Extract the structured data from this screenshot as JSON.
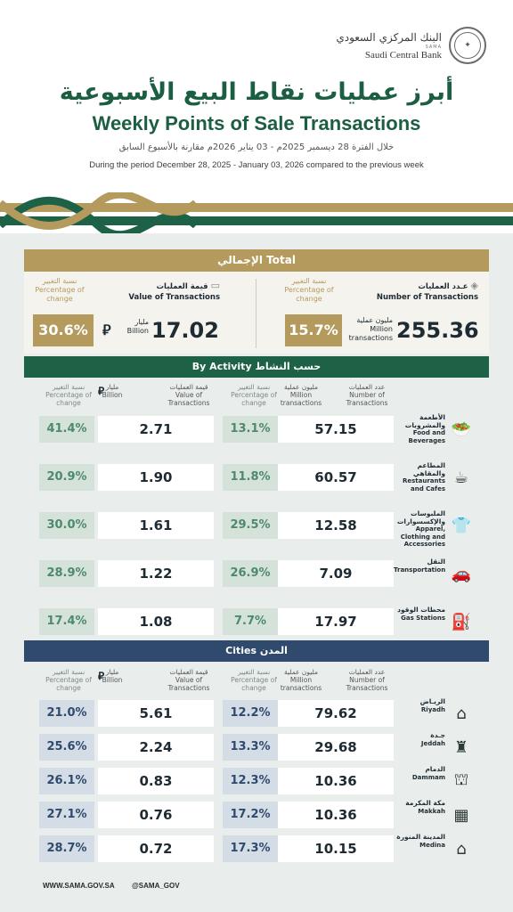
{
  "header": {
    "logo_ar": "البنك المركزي السعودي",
    "logo_small": "SAMA",
    "logo_en": "Saudi Central Bank",
    "title_ar": "أبرز عمليات نقاط البيع الأسبوعية",
    "title_en": "Weekly Points of Sale Transactions",
    "period_ar": "خلال الفترة 28 ديسمبر 2025م - 03 يناير 2026م مقارنة بالأسبوع السابق",
    "period_en": "During the period December 28, 2025 - January 03, 2026 compared to the previous week"
  },
  "colors": {
    "green": "#1d6146",
    "gold": "#b49a5d",
    "navy": "#2f4a6d"
  },
  "total": {
    "heading": "الإجمالي  Total",
    "pct_label_ar": "نسبة التغيير",
    "pct_label_en": "Percentage of change",
    "value_label_ar": "قيمة العمليات",
    "value_label_en": "Value of Transactions",
    "number_label_ar": "عـدد العمليات",
    "number_label_en": "Number of Transactions",
    "value": "17.02",
    "value_unit_ar": "مليار",
    "value_unit_en": "Billion",
    "value_pct": "30.6%",
    "number": "255.36",
    "number_unit_ar": "مليون عملية",
    "number_unit_en": "Million transactions",
    "number_pct": "15.7%"
  },
  "columns": {
    "pct_ar": "نسبة التغيير",
    "pct_en": "Percentage of change",
    "billion_ar": "مليار",
    "billion_en": "Billion",
    "value_ar": "قيمة العمليات",
    "value_en": "Value of Transactions",
    "million_ar": "مليون عملية",
    "million_en": "Million transactions",
    "number_ar": "عدد العمليات",
    "number_en": "Number of Transactions"
  },
  "activity": {
    "heading": "By Activity  حسب النشاط",
    "rows": [
      {
        "ar": "الأطعمة والمشروبات",
        "en": "Food and Beverages",
        "icon": "food-icon",
        "value": "2.71",
        "value_pct": "41.4%",
        "number": "57.15",
        "number_pct": "13.1%"
      },
      {
        "ar": "المطاعم والمقاهي",
        "en": "Restaurants and Cafes",
        "icon": "restaurant-icon",
        "value": "1.90",
        "value_pct": "20.9%",
        "number": "60.57",
        "number_pct": "11.8%"
      },
      {
        "ar": "الملبوسات والإكسسوارات",
        "en": "Apparel, Clothing and Accessories",
        "icon": "apparel-icon",
        "value": "1.61",
        "value_pct": "30.0%",
        "number": "12.58",
        "number_pct": "29.5%"
      },
      {
        "ar": "النقل",
        "en": "Transportation",
        "icon": "car-icon",
        "value": "1.22",
        "value_pct": "28.9%",
        "number": "7.09",
        "number_pct": "26.9%"
      },
      {
        "ar": "محطات الوقود",
        "en": "Gas Stations",
        "icon": "fuel-icon",
        "value": "1.08",
        "value_pct": "17.4%",
        "number": "17.97",
        "number_pct": "7.7%"
      }
    ]
  },
  "cities": {
    "heading": "Cities  المدن",
    "rows": [
      {
        "ar": "الريـاض",
        "en": "Riyadh",
        "icon": "riyadh-tower-icon",
        "value": "5.61",
        "value_pct": "21.0%",
        "number": "79.62",
        "number_pct": "12.2%"
      },
      {
        "ar": "جـدة",
        "en": "Jeddah",
        "icon": "jeddah-icon",
        "value": "2.24",
        "value_pct": "25.6%",
        "number": "29.68",
        "number_pct": "13.3%"
      },
      {
        "ar": "الدمام",
        "en": "Dammam",
        "icon": "dammam-icon",
        "value": "0.83",
        "value_pct": "26.1%",
        "number": "10.36",
        "number_pct": "12.3%"
      },
      {
        "ar": "مكة المكرمة",
        "en": "Makkah",
        "icon": "makkah-icon",
        "value": "0.76",
        "value_pct": "27.1%",
        "number": "10.36",
        "number_pct": "17.2%"
      },
      {
        "ar": "المدينة المنورة",
        "en": "Medina",
        "icon": "medina-icon",
        "value": "0.72",
        "value_pct": "28.7%",
        "number": "10.15",
        "number_pct": "17.3%"
      }
    ]
  },
  "footer": {
    "website": "WWW.SAMA.GOV.SA",
    "handle": "@SAMA_GOV"
  }
}
